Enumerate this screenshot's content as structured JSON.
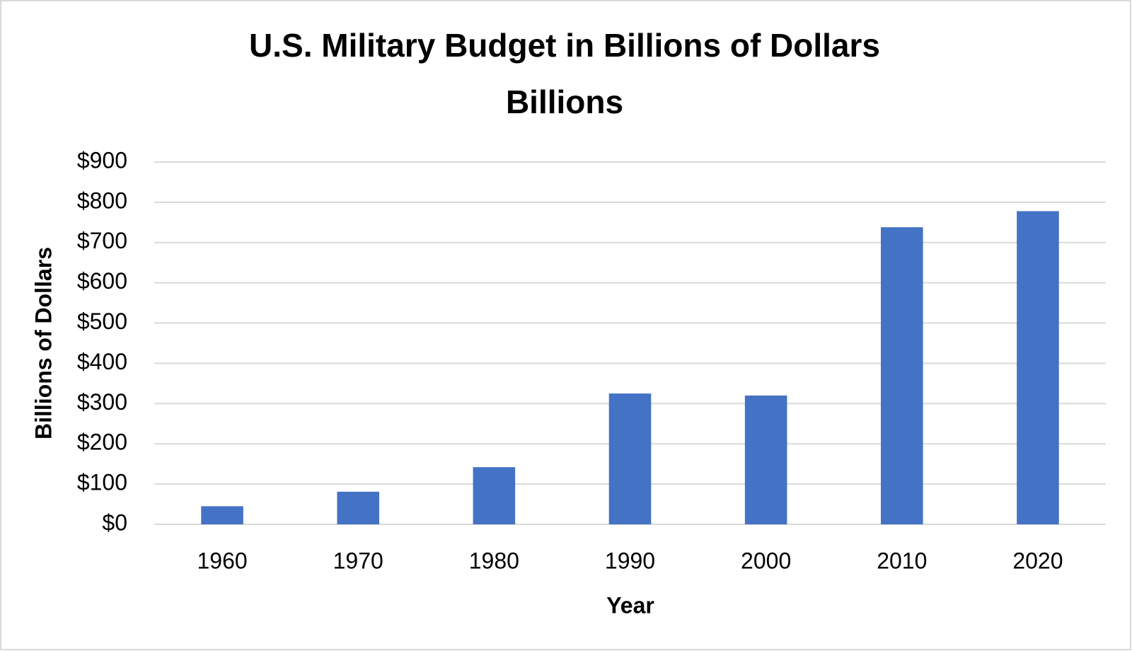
{
  "chart_data": {
    "type": "bar",
    "title": "U.S. Military Budget in Billions of Dollars",
    "subtitle": "Billions",
    "x_label": "Year",
    "y_label": "Billions of Dollars",
    "categories": [
      "1960",
      "1970",
      "1980",
      "1990",
      "2000",
      "2010",
      "2020"
    ],
    "values": [
      45,
      81,
      142,
      325,
      320,
      738,
      778
    ],
    "color": "#4472c4",
    "ylim": [
      0,
      900
    ],
    "yticks": [
      {
        "value": 0,
        "label": "$0"
      },
      {
        "value": 100,
        "label": "$100"
      },
      {
        "value": 200,
        "label": "$200"
      },
      {
        "value": 300,
        "label": "$300"
      },
      {
        "value": 400,
        "label": "$400"
      },
      {
        "value": 500,
        "label": "$500"
      },
      {
        "value": 600,
        "label": "$600"
      },
      {
        "value": 700,
        "label": "$700"
      },
      {
        "value": 800,
        "label": "$800"
      },
      {
        "value": 900,
        "label": "$900"
      }
    ],
    "grid": true
  }
}
